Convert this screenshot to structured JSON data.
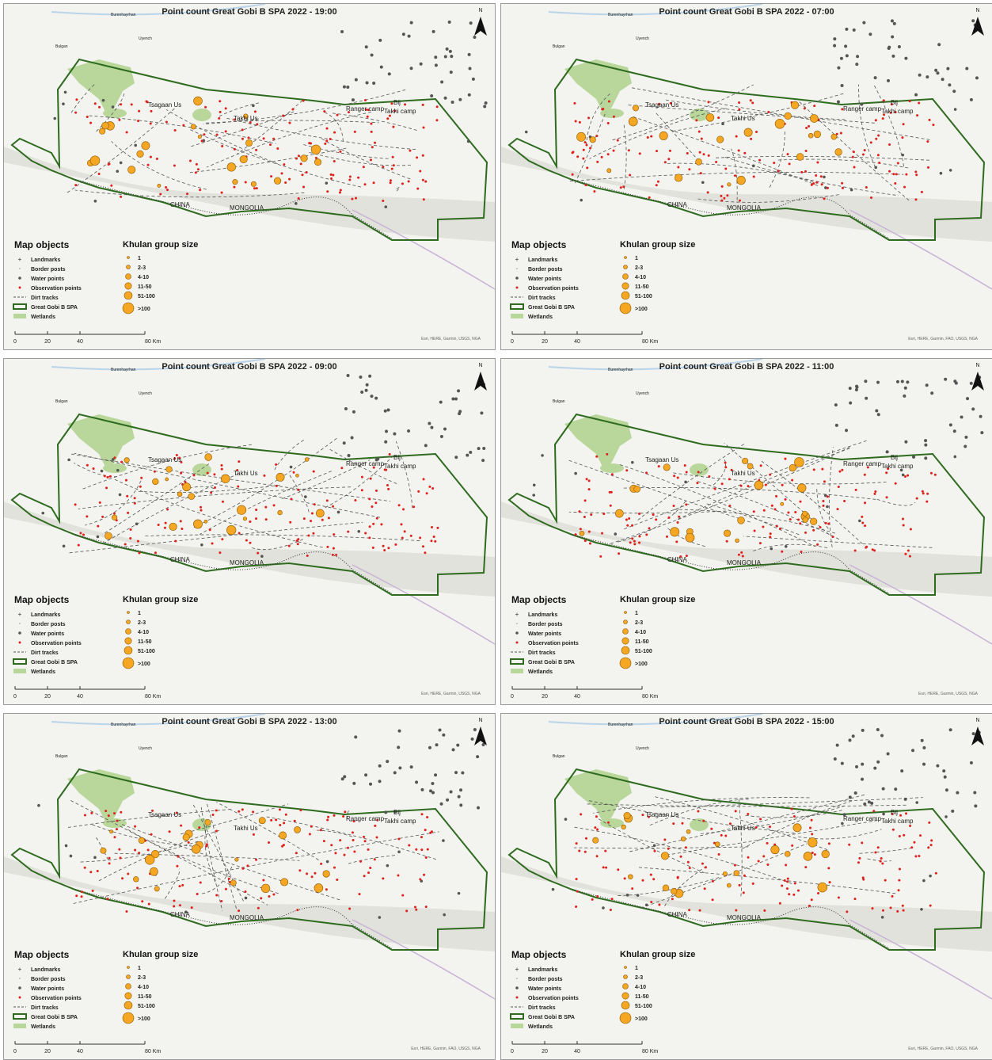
{
  "panels": [
    {
      "title": "Point count Great Gobi B SPA 2022 - 19:00",
      "attribution": "Esri, HERE, Garmin, USGS, NGA"
    },
    {
      "title": "Point count Great Gobi B SPA 2022 - 07:00",
      "attribution": "Esri, HERE, Garmin, FAO, USGS, NGA"
    },
    {
      "title": "Point count Great Gobi B SPA 2022 - 09:00",
      "attribution": "Esri, HERE, Garmin, USGS, NGA"
    },
    {
      "title": "Point count Great Gobi B SPA 2022 - 11:00",
      "attribution": "Esri, HERE, Garmin, USGS, NGA"
    },
    {
      "title": "Point count Great Gobi B SPA 2022 - 13:00",
      "attribution": "Esri, HERE, Garmin, FAO, USGS, NGA"
    },
    {
      "title": "Point count Great Gobi B SPA 2022 - 15:00",
      "attribution": "Esri, HERE, Garmin, FAO, USGS, NGA"
    }
  ],
  "north": "N",
  "place_labels": {
    "tsagaan_us": "Tsagaan Us",
    "takhi_us": "Takhi Us",
    "ranger_camp": "Ranger camp",
    "bij": "Bij",
    "takhi_camp": "Takhi camp",
    "china": "CHINA",
    "mongolia": "MONGOLIA",
    "burenhayrhan": "Burenhayrhan",
    "uyench": "Uyench",
    "bulgan": "Bulgan"
  },
  "map_objects": {
    "title": "Map objects",
    "items": [
      "Landmarks",
      "Border posts",
      "Water points",
      "Observation points",
      "Dirt tracks",
      "Great Gobi B SPA",
      "Wetlands"
    ]
  },
  "group_size": {
    "title": "Khulan group size",
    "items": [
      "1",
      "2-3",
      "4-10",
      "11-50",
      "51-100",
      ">100"
    ]
  },
  "scale": {
    "ticks": [
      0,
      20,
      40,
      {
        "value": 80,
        "label": "80 Km"
      }
    ]
  }
}
